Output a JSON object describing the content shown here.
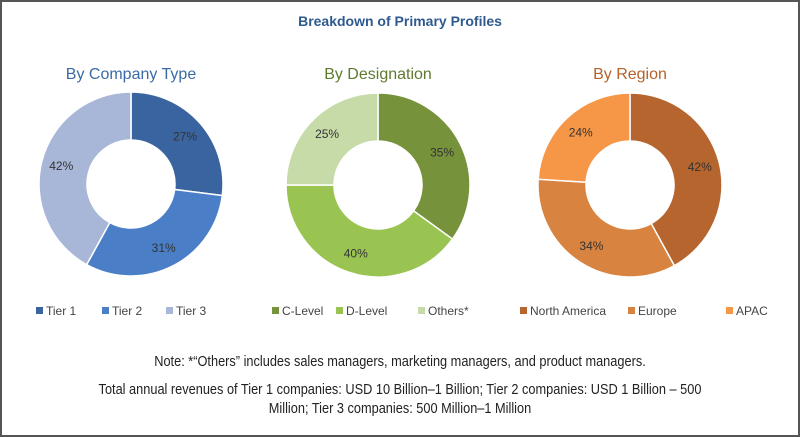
{
  "title": "Breakdown of Primary Profiles",
  "title_color": "#2E5A8E",
  "chart_data": [
    {
      "type": "pie",
      "style": "donut",
      "title": "By Company Type",
      "title_color": "#3B6BA5",
      "categories": [
        "Tier 1",
        "Tier 2",
        "Tier 3"
      ],
      "values": [
        27,
        31,
        42
      ],
      "labels": [
        "27%",
        "31%",
        "42%"
      ],
      "colors": [
        "#3A64A0",
        "#4A7EC6",
        "#A8B7D8"
      ],
      "legend": "bottom"
    },
    {
      "type": "pie",
      "style": "donut",
      "title": "By Designation",
      "title_color": "#5F7A2F",
      "categories": [
        "C-Level",
        "D-Level",
        "Others*"
      ],
      "values": [
        35,
        40,
        25
      ],
      "labels": [
        "35%",
        "40%",
        "25%"
      ],
      "colors": [
        "#76923B",
        "#9AC452",
        "#C6DBA8"
      ],
      "legend": "bottom"
    },
    {
      "type": "pie",
      "style": "donut",
      "title": "By Region",
      "title_color": "#B5612B",
      "categories": [
        "North America",
        "Europe",
        "APAC"
      ],
      "values": [
        42,
        34,
        24
      ],
      "labels": [
        "42%",
        "34%",
        "24%"
      ],
      "colors": [
        "#B5652D",
        "#D8833F",
        "#F59746"
      ],
      "legend": "bottom"
    }
  ],
  "notes": {
    "note1": "Note: *“Others” includes sales managers, marketing managers, and product managers.",
    "note2": "Total annual revenues of Tier 1 companies: USD 10 Billion–1 Billion; Tier 2 companies: USD 1 Billion – 500",
    "note3": "Million; Tier 3 companies: 500 Million–1 Million"
  }
}
